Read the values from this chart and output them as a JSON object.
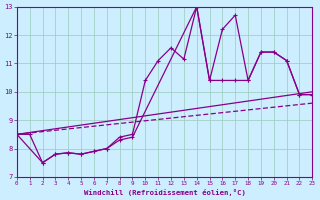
{
  "xlabel": "Windchill (Refroidissement éolien,°C)",
  "xlim": [
    0,
    23
  ],
  "ylim": [
    7,
    13
  ],
  "xticks": [
    0,
    1,
    2,
    3,
    4,
    5,
    6,
    7,
    8,
    9,
    10,
    11,
    12,
    13,
    14,
    15,
    16,
    17,
    18,
    19,
    20,
    21,
    22,
    23
  ],
  "yticks": [
    7,
    8,
    9,
    10,
    11,
    12,
    13
  ],
  "background_color": "#cceeff",
  "line_color": "#880088",
  "grid_color": "#99ccbb",
  "line1_x": [
    0,
    1,
    2,
    3,
    4,
    5,
    6,
    7,
    8,
    9,
    10,
    11,
    12,
    13,
    14,
    15,
    16,
    17,
    18,
    19,
    20,
    21,
    22,
    23
  ],
  "line1_y": [
    8.5,
    8.5,
    7.5,
    7.8,
    7.85,
    7.8,
    7.9,
    8.0,
    8.4,
    8.5,
    10.4,
    11.1,
    11.55,
    11.15,
    13.0,
    10.4,
    10.4,
    10.4,
    10.4,
    11.4,
    11.4,
    11.1,
    9.9,
    9.9
  ],
  "line2_x": [
    0,
    2,
    3,
    4,
    5,
    6,
    7,
    8,
    9,
    14,
    15,
    16,
    17,
    18,
    19,
    20,
    21,
    22,
    23
  ],
  "line2_y": [
    8.5,
    7.5,
    7.8,
    7.85,
    7.8,
    7.9,
    8.0,
    8.3,
    8.4,
    13.0,
    10.4,
    12.2,
    12.7,
    10.4,
    11.4,
    11.4,
    11.1,
    9.9,
    9.9
  ],
  "line3_x": [
    0,
    23
  ],
  "line3_y": [
    8.5,
    10.0
  ],
  "line4_x": [
    0,
    23
  ],
  "line4_y": [
    8.5,
    9.6
  ]
}
